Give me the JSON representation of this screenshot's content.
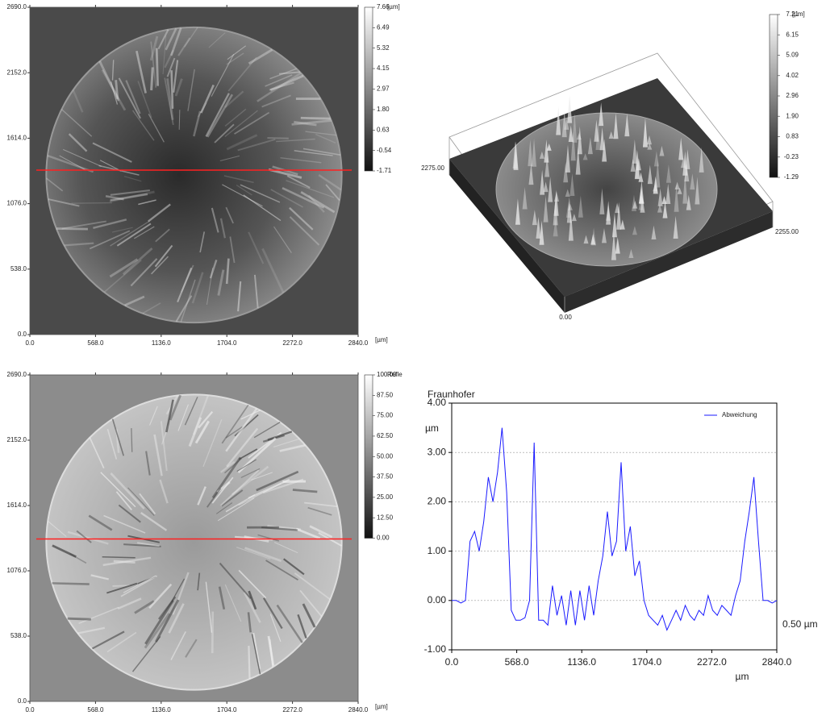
{
  "chart_data": [
    {
      "type": "image",
      "xlim": [
        0,
        2840
      ],
      "ylim": [
        0,
        2690
      ],
      "xticks": [
        {
          "value": 0,
          "label": "0.0"
        },
        {
          "value": 568,
          "label": "568.0"
        },
        {
          "value": 1136,
          "label": "1136.0"
        },
        {
          "value": 1704,
          "label": "1704.0"
        },
        {
          "value": 2272,
          "label": "2272.0"
        },
        {
          "value": 2840,
          "label": "2840.0"
        }
      ],
      "yticks": [
        {
          "value": 0,
          "label": "0.0"
        },
        {
          "value": 538,
          "label": "538.0"
        },
        {
          "value": 1076,
          "label": "1076.0"
        },
        {
          "value": 1614,
          "label": "1614.0"
        },
        {
          "value": 2152,
          "label": "2152.0"
        },
        {
          "value": 2690,
          "label": "2690.0"
        }
      ],
      "x_unit": "[µm]",
      "colorbar": {
        "clim": [
          -1.71,
          7.66
        ],
        "unit": "[µm]",
        "ticks": [
          7.66,
          6.49,
          5.32,
          4.15,
          2.97,
          {
            "value": 1.8,
            "label": "1.80"
          },
          0.63,
          -0.54,
          -1.71
        ]
      }
    },
    {
      "type": "surface3d",
      "corner_labels": [
        "2275.00",
        "2255.00",
        "0.00"
      ],
      "colorbar": {
        "clim": [
          -1.29,
          7.21
        ],
        "unit": "[µm]",
        "ticks": [
          7.21,
          6.15,
          5.09,
          4.02,
          2.96,
          {
            "value": 1.9,
            "label": "1.90"
          },
          0.83,
          -0.23,
          -1.29
        ]
      }
    },
    {
      "type": "image",
      "xlim": [
        0,
        2840
      ],
      "ylim": [
        0,
        2690
      ],
      "xticks": [
        {
          "value": 0,
          "label": "0.0"
        },
        {
          "value": 568,
          "label": "568.0"
        },
        {
          "value": 1136,
          "label": "1136.0"
        },
        {
          "value": 1704,
          "label": "1704.0"
        },
        {
          "value": 2272,
          "label": "2272.0"
        },
        {
          "value": 2840,
          "label": "2840.0"
        }
      ],
      "yticks": [
        {
          "value": 0,
          "label": "0.0"
        },
        {
          "value": 538,
          "label": "538.0"
        },
        {
          "value": 1076,
          "label": "1076.0"
        },
        {
          "value": 1614,
          "label": "1614.0"
        },
        {
          "value": 2152,
          "label": "2152.0"
        },
        {
          "value": 2690,
          "label": "2690.0"
        }
      ],
      "x_unit": "[µm]",
      "colorbar": {
        "clim": [
          0,
          100
        ],
        "unit": "Refle",
        "ticks": [
          {
            "value": 100,
            "label": "100.00"
          },
          {
            "value": 87.5,
            "label": "87.50"
          },
          {
            "value": 75,
            "label": "75.00"
          },
          {
            "value": 62.5,
            "label": "62.50"
          },
          {
            "value": 50,
            "label": "50.00"
          },
          {
            "value": 37.5,
            "label": "37.50"
          },
          {
            "value": 25,
            "label": "25.00"
          },
          {
            "value": 12.5,
            "label": "12.50"
          },
          {
            "value": 0,
            "label": "0.00"
          }
        ]
      }
    },
    {
      "type": "line",
      "title": "Fraunhofer",
      "y_label": "µm",
      "x_label": "µm",
      "annotation": "0.50 µm",
      "legend": "top-right",
      "grid": true,
      "xlim": [
        0,
        2840
      ],
      "ylim": [
        -1,
        4
      ],
      "xticks": [
        {
          "value": 0,
          "label": "0.0"
        },
        {
          "value": 568,
          "label": "568.0"
        },
        {
          "value": 1136,
          "label": "1136.0"
        },
        {
          "value": 1704,
          "label": "1704.0"
        },
        {
          "value": 2272,
          "label": "2272.0"
        },
        {
          "value": 2840,
          "label": "2840.0"
        }
      ],
      "yticks": [
        {
          "value": 4,
          "label": "4.00"
        },
        {
          "value": 3,
          "label": "3.00"
        },
        {
          "value": 2,
          "label": "2.00"
        },
        {
          "value": 1,
          "label": "1.00"
        },
        {
          "value": 0,
          "label": "0.00"
        },
        {
          "value": -1,
          "label": "-1.00"
        }
      ],
      "x": [
        0,
        40,
        80,
        120,
        160,
        200,
        240,
        280,
        320,
        360,
        400,
        440,
        480,
        520,
        560,
        600,
        640,
        680,
        720,
        760,
        800,
        840,
        880,
        920,
        960,
        1000,
        1040,
        1080,
        1120,
        1160,
        1200,
        1240,
        1280,
        1320,
        1360,
        1400,
        1440,
        1480,
        1520,
        1560,
        1600,
        1640,
        1680,
        1720,
        1760,
        1800,
        1840,
        1880,
        1920,
        1960,
        2000,
        2040,
        2080,
        2120,
        2160,
        2200,
        2240,
        2280,
        2320,
        2360,
        2400,
        2440,
        2480,
        2520,
        2560,
        2600,
        2640,
        2680,
        2720,
        2760,
        2800,
        2840
      ],
      "series": [
        {
          "name": "Abweichung",
          "color": "#1a1aff",
          "values": [
            0.0,
            0.0,
            -0.05,
            0.0,
            1.2,
            1.4,
            1.0,
            1.6,
            2.5,
            2.0,
            2.6,
            3.5,
            2.2,
            -0.2,
            -0.4,
            -0.4,
            -0.35,
            0.0,
            3.2,
            -0.4,
            -0.4,
            -0.5,
            0.3,
            -0.3,
            0.1,
            -0.5,
            0.2,
            -0.5,
            0.2,
            -0.4,
            0.3,
            -0.3,
            0.4,
            0.9,
            1.8,
            0.9,
            1.2,
            2.8,
            1.0,
            1.5,
            0.5,
            0.8,
            0.0,
            -0.3,
            -0.4,
            -0.5,
            -0.3,
            -0.6,
            -0.4,
            -0.2,
            -0.4,
            -0.1,
            -0.3,
            -0.4,
            -0.2,
            -0.3,
            0.1,
            -0.2,
            -0.3,
            -0.1,
            -0.2,
            -0.3,
            0.1,
            0.4,
            1.2,
            1.8,
            2.5,
            1.2,
            0.0,
            0.0,
            -0.05,
            0.0
          ]
        }
      ]
    }
  ]
}
